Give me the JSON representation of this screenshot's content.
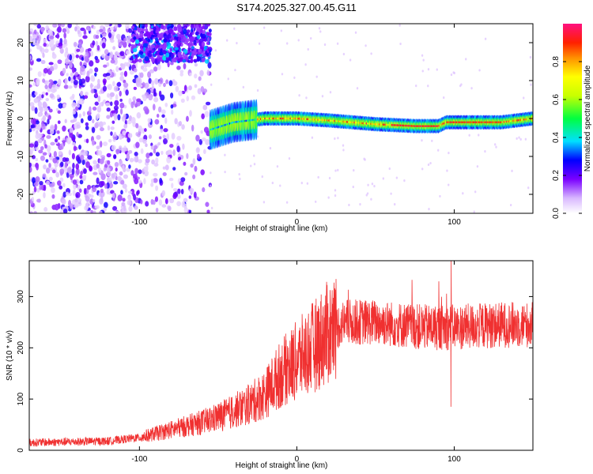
{
  "title": "S174.2025.327.00.45.G11",
  "colorbar": {
    "label": "Normalized spectral amplitude",
    "ticks": [
      "0.0",
      "0.2",
      "0.4",
      "0.6",
      "0.8"
    ],
    "tick_values": [
      0.0,
      0.2,
      0.4,
      0.6,
      0.8
    ],
    "range": [
      0,
      1
    ]
  },
  "chart_data": [
    {
      "type": "heatmap",
      "xlabel": "Height of straight line (km)",
      "ylabel": "Frequency (Hz)",
      "xlim": [
        -170,
        150
      ],
      "ylim": [
        -25,
        25
      ],
      "x_ticks": [
        "-100",
        "0",
        "100"
      ],
      "x_tick_values": [
        -100,
        0,
        100
      ],
      "y_ticks": [
        "-20",
        "-10",
        "0",
        "10",
        "20"
      ],
      "y_tick_values": [
        -20,
        -10,
        0,
        10,
        20
      ],
      "colormap": "rainbow (purple→blue→cyan→green→yellow→orange→red→pink)",
      "features": {
        "noise_region_x": [
          -170,
          -55
        ],
        "dense_noise_patch": {
          "x": [
            -105,
            -55
          ],
          "y": [
            15,
            25
          ]
        },
        "signal_trace": [
          {
            "x": -55,
            "y": -3
          },
          {
            "x": -40,
            "y": -1
          },
          {
            "x": -20,
            "y": 0
          },
          {
            "x": 0,
            "y": 0
          },
          {
            "x": 20,
            "y": -0.5
          },
          {
            "x": 50,
            "y": -1.5
          },
          {
            "x": 75,
            "y": -2
          },
          {
            "x": 90,
            "y": -2
          },
          {
            "x": 95,
            "y": -1
          },
          {
            "x": 130,
            "y": -1
          },
          {
            "x": 150,
            "y": 0
          }
        ]
      }
    },
    {
      "type": "line",
      "xlabel": "Height of straight line (km)",
      "ylabel": "SNR (10 * v/v)",
      "xlim": [
        -170,
        150
      ],
      "ylim": [
        0,
        370
      ],
      "x_ticks": [
        "-100",
        "0",
        "100"
      ],
      "x_tick_values": [
        -100,
        0,
        100
      ],
      "y_ticks": [
        "0",
        "100",
        "200",
        "300"
      ],
      "y_tick_values": [
        0,
        100,
        200,
        300
      ],
      "line_color": "#f03030",
      "trend": [
        {
          "x": -170,
          "y": 15
        },
        {
          "x": -120,
          "y": 18
        },
        {
          "x": -100,
          "y": 25
        },
        {
          "x": -80,
          "y": 40
        },
        {
          "x": -60,
          "y": 55
        },
        {
          "x": -45,
          "y": 70
        },
        {
          "x": -30,
          "y": 90
        },
        {
          "x": -20,
          "y": 110
        },
        {
          "x": -10,
          "y": 150
        },
        {
          "x": 0,
          "y": 175
        },
        {
          "x": 10,
          "y": 200
        },
        {
          "x": 20,
          "y": 230
        },
        {
          "x": 30,
          "y": 250
        },
        {
          "x": 50,
          "y": 250
        },
        {
          "x": 80,
          "y": 240
        },
        {
          "x": 100,
          "y": 240
        },
        {
          "x": 130,
          "y": 245
        },
        {
          "x": 150,
          "y": 245
        }
      ],
      "annotations": [
        {
          "x": 98,
          "y_peak": 370,
          "note": "spike"
        },
        {
          "x": 98,
          "y_min": 85,
          "note": "dip"
        }
      ]
    }
  ]
}
